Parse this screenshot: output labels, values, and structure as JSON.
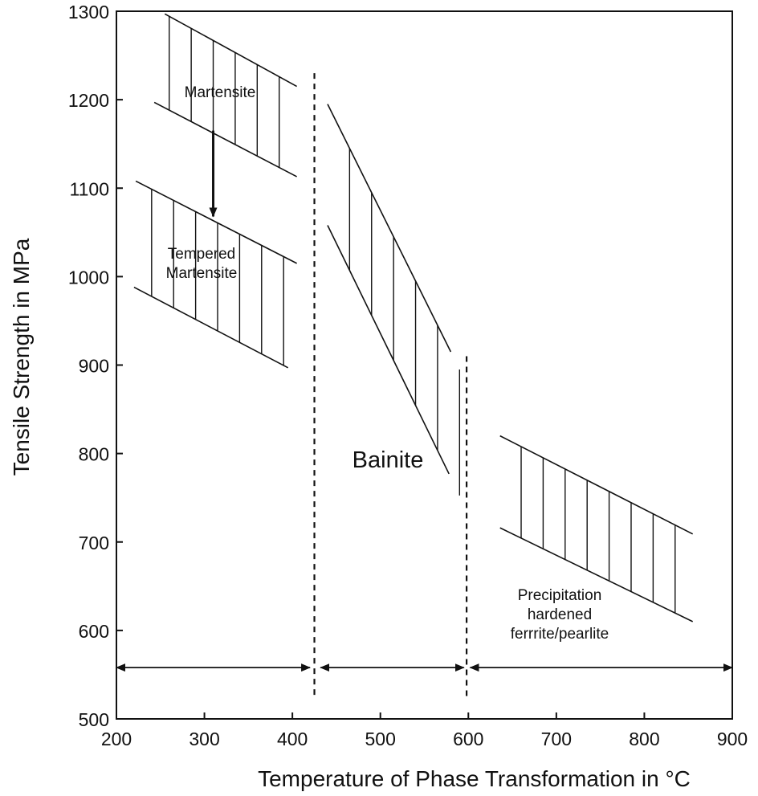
{
  "chart_data": {
    "type": "line",
    "title": "",
    "xlabel": "Temperature of Phase Transformation in °C",
    "ylabel": "Tensile Strength in MPa",
    "xlim": [
      200,
      900
    ],
    "ylim": [
      500,
      1300
    ],
    "x_ticks": [
      200,
      300,
      400,
      500,
      600,
      700,
      800,
      900
    ],
    "y_ticks": [
      500,
      600,
      700,
      800,
      900,
      1000,
      1100,
      1200,
      1300
    ],
    "grid": false,
    "bands": [
      {
        "name": "Martensite",
        "label_lines": [
          "Martensite"
        ],
        "upper": [
          [
            255,
            1297
          ],
          [
            405,
            1215
          ]
        ],
        "lower": [
          [
            243,
            1197
          ],
          [
            405,
            1113
          ]
        ],
        "hatch_x": [
          260,
          285,
          310,
          335,
          360,
          385
        ]
      },
      {
        "name": "Tempered Martensite",
        "label_lines": [
          "Tempered",
          "Martensite"
        ],
        "upper": [
          [
            222,
            1108
          ],
          [
            405,
            1015
          ]
        ],
        "lower": [
          [
            220,
            988
          ],
          [
            395,
            897
          ]
        ],
        "hatch_x": [
          240,
          265,
          290,
          315,
          340,
          365,
          390
        ]
      },
      {
        "name": "Bainite",
        "label_lines": [
          "Bainite"
        ],
        "upper": [
          [
            440,
            1195
          ],
          [
            580,
            915
          ]
        ],
        "lower": [
          [
            440,
            1058
          ],
          [
            578,
            777
          ]
        ],
        "hatch_x": [
          465,
          490,
          515,
          540,
          565,
          590
        ]
      },
      {
        "name": "Precipitation hardened ferrrite/pearlite",
        "label_lines": [
          "Precipitation",
          "hardened",
          "ferrrite/pearlite"
        ],
        "upper": [
          [
            636,
            820
          ],
          [
            855,
            709
          ]
        ],
        "lower": [
          [
            636,
            716
          ],
          [
            855,
            610
          ]
        ],
        "hatch_x": [
          660,
          685,
          710,
          735,
          760,
          785,
          810,
          835
        ]
      }
    ],
    "dividers": [
      {
        "x": 425,
        "y_range": [
          522,
          1230
        ]
      },
      {
        "x": 598,
        "y_range": [
          522,
          910
        ]
      }
    ],
    "ranges": [
      {
        "from": 200,
        "to": 420,
        "y": 558
      },
      {
        "from": 432,
        "to": 595,
        "y": 558
      },
      {
        "from": 602,
        "to": 900,
        "y": 558
      }
    ],
    "arrow": {
      "from": [
        310,
        1165
      ],
      "to": [
        310,
        1068
      ]
    }
  }
}
